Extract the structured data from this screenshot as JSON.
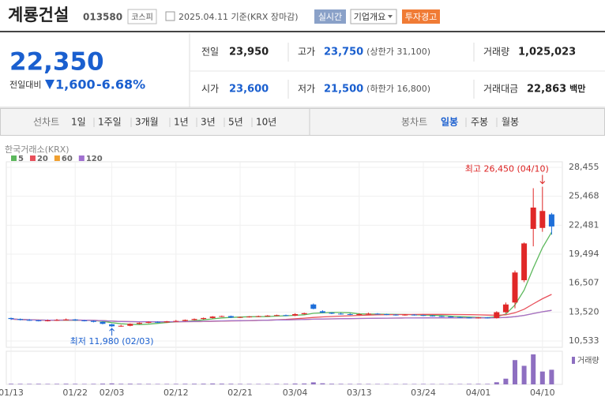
{
  "header": {
    "name": "계룡건설",
    "code": "013580",
    "market": "코스피",
    "date": "2025.04.11 기준(KRX 장마감)",
    "buttons": [
      "실시간",
      "기업개요",
      "투자경고"
    ]
  },
  "price": {
    "current": "22,350",
    "change_label": "전일대비",
    "change": "1,600",
    "change_rate": "-6.68%"
  },
  "stats": [
    {
      "label": "전일",
      "value": "23,950"
    },
    {
      "label": "고가",
      "value": "23,750",
      "extra": "(상한가 31,100)"
    },
    {
      "label": "거래량",
      "value": "1,025,023"
    },
    {
      "label": "시가",
      "value": "23,600"
    },
    {
      "label": "저가",
      "value": "21,500",
      "extra": "(하한가 16,800)"
    },
    {
      "label": "거래대금",
      "value": "22,863",
      "unit": "백만"
    }
  ],
  "tabs": {
    "line_label": "선차트",
    "line": [
      "1일",
      "1주일",
      "3개월",
      "1년",
      "3년",
      "5년",
      "10년"
    ],
    "candle_label": "봉차트",
    "candle": [
      "일봉",
      "주봉",
      "월봉"
    ],
    "selected": "일봉"
  },
  "chart_data": {
    "type": "candlestick",
    "source": "한국거래소(KRX)",
    "volume_label": "거래량",
    "categories": [
      "01/13",
      null,
      null,
      null,
      null,
      null,
      null,
      "01/22",
      null,
      null,
      null,
      "02/03",
      null,
      null,
      null,
      null,
      null,
      null,
      "02/12",
      null,
      null,
      null,
      null,
      null,
      null,
      "02/21",
      null,
      null,
      null,
      null,
      null,
      "03/04",
      null,
      null,
      null,
      null,
      null,
      null,
      "03/13",
      null,
      null,
      null,
      null,
      null,
      null,
      "03/24",
      null,
      null,
      null,
      null,
      null,
      "04/01",
      null,
      null,
      null,
      null,
      null,
      null,
      "04/10",
      null
    ],
    "open": [
      12900,
      12800,
      12700,
      12650,
      12600,
      12650,
      12700,
      12750,
      12650,
      12600,
      12500,
      12250,
      12050,
      12100,
      12300,
      12400,
      12500,
      12450,
      12550,
      12600,
      12700,
      12800,
      12900,
      13050,
      13100,
      12950,
      13000,
      13050,
      13100,
      13150,
      13200,
      13150,
      13300,
      14300,
      13600,
      13450,
      13350,
      13300,
      13250,
      13300,
      13350,
      13300,
      13250,
      13200,
      13250,
      13200,
      13150,
      13100,
      13050,
      13000,
      12950,
      12900,
      12950,
      12900,
      13500,
      14500,
      16800,
      22100,
      22200,
      23600
    ],
    "high": [
      12950,
      12850,
      12800,
      12700,
      12750,
      12800,
      12850,
      12800,
      12700,
      12650,
      12550,
      12300,
      12200,
      12350,
      12450,
      12550,
      12550,
      12600,
      12700,
      12750,
      12850,
      12950,
      13100,
      13150,
      13150,
      13050,
      13100,
      13150,
      13200,
      13250,
      13250,
      13400,
      13450,
      14400,
      13700,
      13500,
      13450,
      13400,
      13400,
      13450,
      13400,
      13350,
      13300,
      13300,
      13300,
      13250,
      13200,
      13150,
      13100,
      13050,
      13000,
      13000,
      13000,
      13600,
      14500,
      17800,
      20700,
      26300,
      26450,
      23750
    ],
    "low": [
      12700,
      12650,
      12600,
      12550,
      12550,
      12600,
      12650,
      12600,
      12550,
      12450,
      12250,
      11980,
      12000,
      12050,
      12250,
      12350,
      12400,
      12400,
      12500,
      12550,
      12650,
      12750,
      12850,
      13000,
      12900,
      12900,
      12950,
      13000,
      13050,
      13100,
      13100,
      13100,
      13250,
      13800,
      13400,
      13300,
      13250,
      13200,
      13200,
      13250,
      13250,
      13200,
      13150,
      13150,
      13150,
      13100,
      13050,
      13000,
      12950,
      12900,
      12850,
      12850,
      12850,
      12850,
      13400,
      13900,
      16600,
      20300,
      21800,
      21500
    ],
    "close": [
      12800,
      12700,
      12650,
      12600,
      12650,
      12700,
      12750,
      12650,
      12600,
      12500,
      12300,
      12050,
      12100,
      12300,
      12400,
      12500,
      12450,
      12550,
      12600,
      12700,
      12800,
      12900,
      13050,
      13100,
      12950,
      13000,
      13050,
      13100,
      13150,
      13200,
      13150,
      13300,
      13400,
      13850,
      13450,
      13350,
      13300,
      13250,
      13300,
      13350,
      13300,
      13250,
      13200,
      13250,
      13200,
      13150,
      13100,
      13050,
      13000,
      12950,
      12900,
      12950,
      12900,
      13500,
      14300,
      17600,
      20600,
      24300,
      23950,
      22350
    ],
    "volume": [
      42000,
      38000,
      35000,
      40000,
      33000,
      36000,
      45000,
      39000,
      31000,
      37000,
      52000,
      68000,
      41000,
      47000,
      39000,
      35000,
      30000,
      33000,
      36000,
      41000,
      44000,
      48000,
      62000,
      50000,
      43000,
      35000,
      32000,
      30000,
      34000,
      38000,
      36000,
      58000,
      61000,
      142000,
      75000,
      44000,
      37000,
      33000,
      35000,
      31000,
      29000,
      30000,
      28000,
      32000,
      27000,
      30000,
      29000,
      26000,
      31000,
      28000,
      33000,
      36000,
      34000,
      150000,
      400000,
      1700000,
      1300000,
      2100000,
      900000,
      1025023
    ],
    "ylim": [
      9880,
      29025
    ],
    "yticks": [
      {
        "value": 28455,
        "label": "28,455"
      },
      {
        "value": 25468,
        "label": "25,468"
      },
      {
        "value": 22481,
        "label": "22,481"
      },
      {
        "value": 19494,
        "label": "19,494"
      },
      {
        "value": 16507,
        "label": "16,507"
      },
      {
        "value": 13520,
        "label": "13,520"
      },
      {
        "value": 10533,
        "label": "10,533"
      }
    ],
    "ma": [
      {
        "period": 5,
        "color": "#5cb85c"
      },
      {
        "period": 20,
        "color": "#e8505b"
      },
      {
        "period": 60,
        "color": "#f0a030"
      },
      {
        "period": 120,
        "color": "#a070d0"
      }
    ],
    "up_color": "#e02828",
    "down_color": "#1e6fd9",
    "volume_color": "#8e6fc1",
    "annotations": {
      "high": "최고 26,450 (04/10)",
      "low": "최저 11,980 (02/03)"
    }
  }
}
